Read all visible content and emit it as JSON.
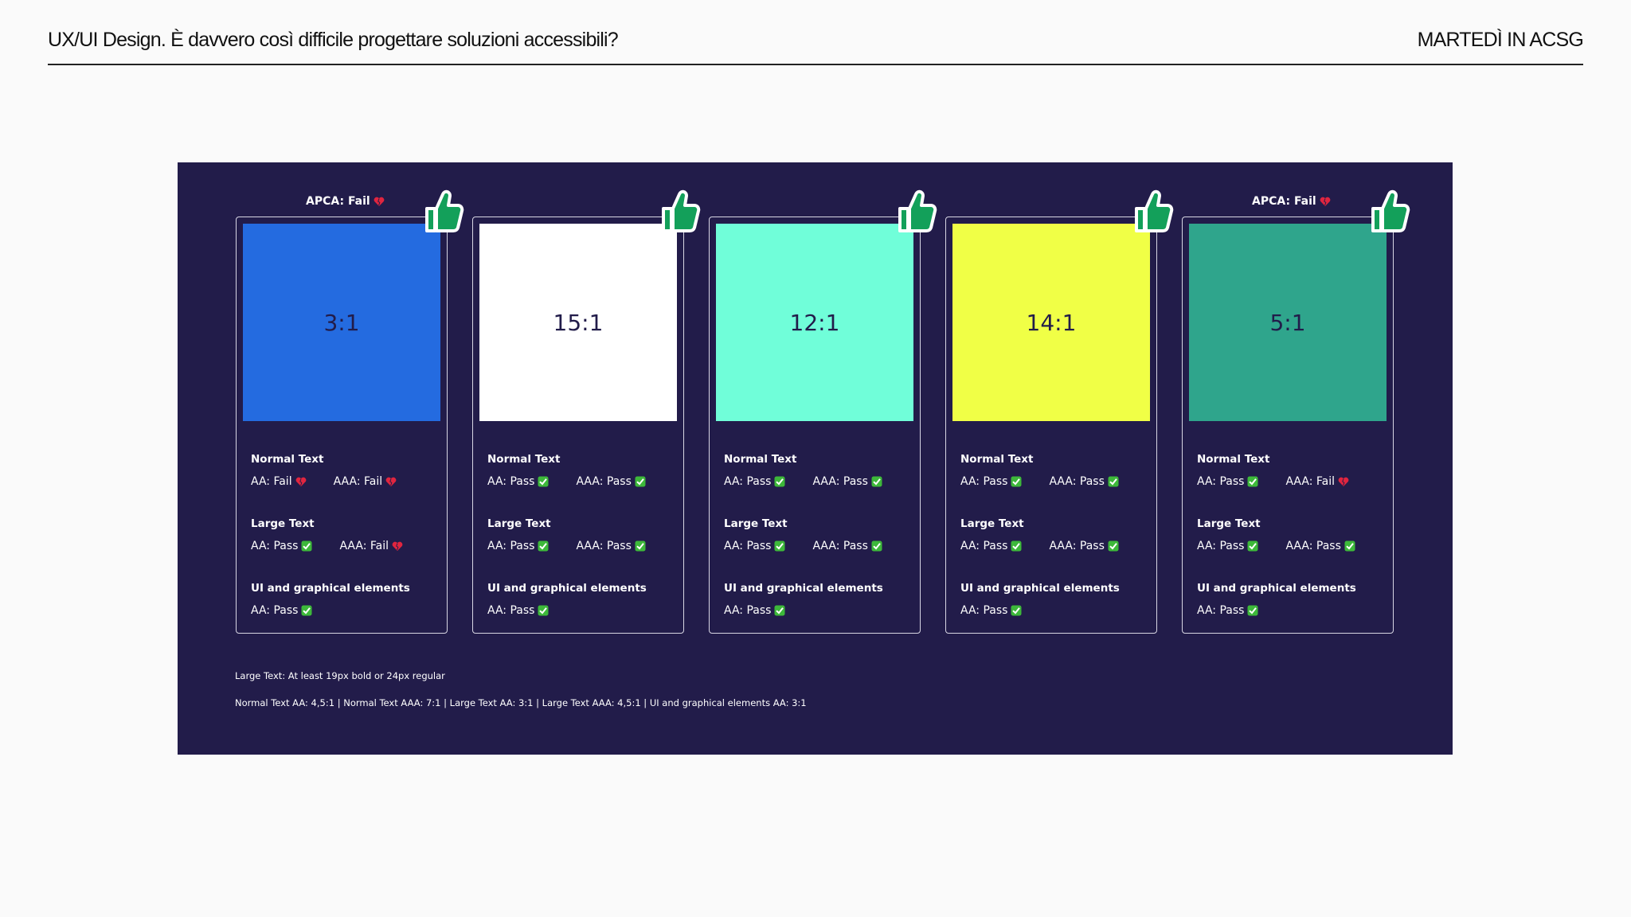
{
  "header": {
    "title": "UX/UI Design. È davvero così difficile progettare soluzioni accessibili?",
    "right": "MARTEDÌ IN ACSG"
  },
  "cards": [
    {
      "apca": "APCA: Fail",
      "ratio": "3:1",
      "color": "#246be0",
      "sections": [
        {
          "label": "Normal Text",
          "items": [
            "AA: Fail",
            "AAA: Fail"
          ]
        },
        {
          "label": "Large Text",
          "items": [
            "AA: Pass",
            "AAA: Fail"
          ]
        },
        {
          "label": "UI and graphical elements",
          "items": [
            "AA: Pass"
          ]
        }
      ]
    },
    {
      "ratio": "15:1",
      "color": "#ffffff",
      "sections": [
        {
          "label": "Normal Text",
          "items": [
            "AA: Pass",
            "AAA: Pass"
          ]
        },
        {
          "label": "Large Text",
          "items": [
            "AA: Pass",
            "AAA: Pass"
          ]
        },
        {
          "label": "UI and graphical elements",
          "items": [
            "AA: Pass"
          ]
        }
      ]
    },
    {
      "ratio": "12:1",
      "color": "#70fed9",
      "sections": [
        {
          "label": "Normal Text",
          "items": [
            "AA: Pass",
            "AAA: Pass"
          ]
        },
        {
          "label": "Large Text",
          "items": [
            "AA: Pass",
            "AAA: Pass"
          ]
        },
        {
          "label": "UI and graphical elements",
          "items": [
            "AA: Pass"
          ]
        }
      ]
    },
    {
      "ratio": "14:1",
      "color": "#f0ff46",
      "sections": [
        {
          "label": "Normal Text",
          "items": [
            "AA: Pass",
            "AAA: Pass"
          ]
        },
        {
          "label": "Large Text",
          "items": [
            "AA: Pass",
            "AAA: Pass"
          ]
        },
        {
          "label": "UI and graphical elements",
          "items": [
            "AA: Pass"
          ]
        }
      ]
    },
    {
      "apca": "APCA: Fail",
      "ratio": "5:1",
      "color": "#2fa58c",
      "sections": [
        {
          "label": "Normal Text",
          "items": [
            "AA: Pass",
            "AAA: Fail"
          ]
        },
        {
          "label": "Large Text",
          "items": [
            "AA: Pass",
            "AAA: Pass"
          ]
        },
        {
          "label": "UI and graphical elements",
          "items": [
            "AA: Pass"
          ]
        }
      ]
    }
  ],
  "notes": [
    "Large Text: At least 19px bold or 24px regular",
    "Normal Text AA: 4,5:1 | Normal Text AAA: 7:1 | Large Text AA: 3:1 | Large Text AAA: 4,5:1 | UI and graphical elements AA: 3:1"
  ]
}
